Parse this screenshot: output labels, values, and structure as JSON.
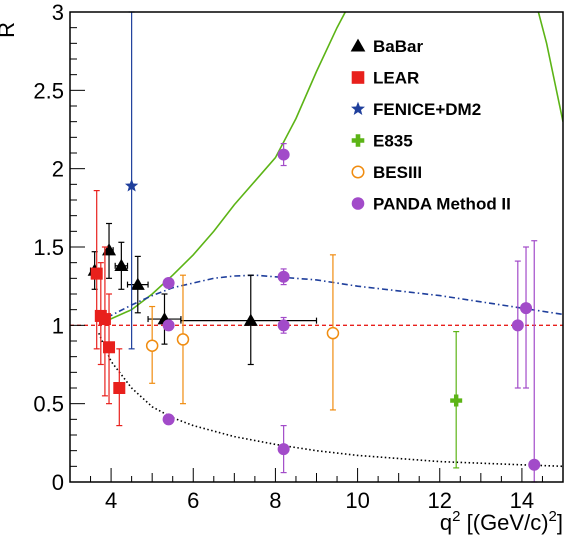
{
  "chart_data": {
    "type": "scatter",
    "xlabel": "q",
    "xlabel_sup": "2",
    "xlabel_units": " [(GeV/c)",
    "xlabel_units_sup": "2",
    "xlabel_units_end": "]",
    "ylabel": "R",
    "xlim": [
      3,
      15
    ],
    "ylim": [
      0,
      3
    ],
    "x_ticks": [
      {
        "value": 4,
        "label": "4"
      },
      {
        "value": 6,
        "label": "6"
      },
      {
        "value": 8,
        "label": "8"
      },
      {
        "value": 10,
        "label": "10"
      },
      {
        "value": 12,
        "label": "12"
      },
      {
        "value": 14,
        "label": "14"
      }
    ],
    "y_ticks": [
      {
        "value": 0,
        "label": "0"
      },
      {
        "value": 0.5,
        "label": "0.5"
      },
      {
        "value": 1,
        "label": "1"
      },
      {
        "value": 1.5,
        "label": "1.5"
      },
      {
        "value": 2,
        "label": "2"
      },
      {
        "value": 2.5,
        "label": "2.5"
      },
      {
        "value": 3,
        "label": "3"
      }
    ],
    "legend_position": "top-right",
    "reference_line": {
      "y": 1,
      "color": "#e8201c",
      "style": "dashed"
    },
    "series": [
      {
        "name": "BaBar",
        "marker": "triangle",
        "color": "#000000",
        "points": [
          {
            "x": 3.6,
            "y": 1.35,
            "xlo": 3.5,
            "xhi": 3.7,
            "ylo": 1.23,
            "yhi": 1.47
          },
          {
            "x": 3.95,
            "y": 1.48,
            "xlo": 3.85,
            "xhi": 4.05,
            "ylo": 1.3,
            "yhi": 1.65
          },
          {
            "x": 4.25,
            "y": 1.38,
            "xlo": 4.1,
            "xhi": 4.4,
            "ylo": 1.23,
            "yhi": 1.53
          },
          {
            "x": 4.65,
            "y": 1.26,
            "xlo": 4.4,
            "xhi": 4.9,
            "ylo": 1.08,
            "yhi": 1.44
          },
          {
            "x": 5.3,
            "y": 1.04,
            "xlo": 4.9,
            "xhi": 5.7,
            "ylo": 0.88,
            "yhi": 1.2
          },
          {
            "x": 7.4,
            "y": 1.03,
            "xlo": 5.7,
            "xhi": 9.0,
            "ylo": 0.75,
            "yhi": 1.32
          }
        ]
      },
      {
        "name": "LEAR",
        "marker": "square",
        "color": "#e8201c",
        "points": [
          {
            "x": 3.65,
            "y": 1.33,
            "ylo": 0.85,
            "yhi": 1.86
          },
          {
            "x": 3.75,
            "y": 1.06,
            "ylo": 0.75,
            "yhi": 1.4
          },
          {
            "x": 3.85,
            "y": 1.04,
            "ylo": 0.55,
            "yhi": 1.5
          },
          {
            "x": 3.95,
            "y": 0.86,
            "ylo": 0.5,
            "yhi": 1.2
          },
          {
            "x": 4.2,
            "y": 0.6,
            "ylo": 0.36,
            "yhi": 0.85
          }
        ]
      },
      {
        "name": "FENICE+DM2",
        "marker": "star",
        "color": "#1f3f9c",
        "points": [
          {
            "x": 4.5,
            "y": 1.89,
            "ylo": 0.85,
            "yhi": 3.0
          }
        ]
      },
      {
        "name": "E835",
        "marker": "cross",
        "color": "#5cb416",
        "points": [
          {
            "x": 12.4,
            "y": 0.52,
            "ylo": 0.09,
            "yhi": 0.96
          }
        ]
      },
      {
        "name": "BESIII",
        "marker": "open-circle",
        "color": "#f08c10",
        "points": [
          {
            "x": 5.0,
            "y": 0.87,
            "ylo": 0.63,
            "yhi": 1.12
          },
          {
            "x": 5.75,
            "y": 0.91,
            "ylo": 0.5,
            "yhi": 1.32
          },
          {
            "x": 9.4,
            "y": 0.95,
            "ylo": 0.46,
            "yhi": 1.45
          }
        ]
      },
      {
        "name": "PANDA Method II",
        "marker": "filled-circle",
        "color": "#a24bc9",
        "points": [
          {
            "x": 5.4,
            "y": 1.27,
            "ylo": 1.24,
            "yhi": 1.3
          },
          {
            "x": 5.4,
            "y": 1.0,
            "ylo": 0.97,
            "yhi": 1.03
          },
          {
            "x": 5.4,
            "y": 0.4,
            "ylo": 0.38,
            "yhi": 0.42
          },
          {
            "x": 8.2,
            "y": 2.09,
            "ylo": 2.02,
            "yhi": 2.16
          },
          {
            "x": 8.2,
            "y": 1.31,
            "ylo": 1.26,
            "yhi": 1.36
          },
          {
            "x": 8.2,
            "y": 1.0,
            "ylo": 0.95,
            "yhi": 1.05
          },
          {
            "x": 8.2,
            "y": 0.21,
            "ylo": 0.06,
            "yhi": 0.36
          },
          {
            "x": 13.9,
            "y": 1.0,
            "ylo": 0.6,
            "yhi": 1.41
          },
          {
            "x": 14.1,
            "y": 1.11,
            "ylo": 0.6,
            "yhi": 1.5
          },
          {
            "x": 14.3,
            "y": 0.11,
            "ylo": 0.0,
            "yhi": 1.54
          }
        ]
      }
    ],
    "curves": [
      {
        "style": "solid",
        "color": "#5cb416",
        "points": [
          [
            3.9,
            1.03
          ],
          [
            4.5,
            1.1
          ],
          [
            5.0,
            1.2
          ],
          [
            5.5,
            1.32
          ],
          [
            6.0,
            1.45
          ],
          [
            6.5,
            1.6
          ],
          [
            7.0,
            1.77
          ],
          [
            7.5,
            1.92
          ],
          [
            8.0,
            2.07
          ],
          [
            8.5,
            2.32
          ],
          [
            9.0,
            2.62
          ],
          [
            9.5,
            2.9
          ],
          [
            9.7,
            3.0
          ]
        ]
      },
      {
        "style": "solid",
        "color": "#5cb416",
        "points": [
          [
            14.4,
            3.0
          ],
          [
            14.6,
            2.8
          ],
          [
            14.8,
            2.55
          ],
          [
            15.0,
            2.3
          ]
        ]
      },
      {
        "style": "dash-dot",
        "color": "#1f3f9c",
        "points": [
          [
            3.9,
            1.05
          ],
          [
            4.5,
            1.13
          ],
          [
            5.0,
            1.19
          ],
          [
            5.5,
            1.24
          ],
          [
            6.0,
            1.27
          ],
          [
            6.5,
            1.3
          ],
          [
            7.0,
            1.315
          ],
          [
            7.5,
            1.32
          ],
          [
            8.0,
            1.31
          ],
          [
            9.0,
            1.29
          ],
          [
            10.0,
            1.25
          ],
          [
            11.0,
            1.22
          ],
          [
            12.0,
            1.19
          ],
          [
            13.0,
            1.15
          ],
          [
            14.0,
            1.11
          ],
          [
            15.0,
            1.07
          ]
        ]
      },
      {
        "style": "dotted",
        "color": "#000000",
        "points": [
          [
            3.7,
            0.95
          ],
          [
            4.0,
            0.77
          ],
          [
            4.5,
            0.6
          ],
          [
            5.0,
            0.48
          ],
          [
            5.5,
            0.41
          ],
          [
            6.0,
            0.36
          ],
          [
            7.0,
            0.29
          ],
          [
            8.0,
            0.24
          ],
          [
            9.0,
            0.2
          ],
          [
            10.0,
            0.17
          ],
          [
            11.0,
            0.15
          ],
          [
            12.0,
            0.13
          ],
          [
            13.0,
            0.12
          ],
          [
            14.0,
            0.11
          ],
          [
            15.0,
            0.1
          ]
        ]
      }
    ]
  }
}
